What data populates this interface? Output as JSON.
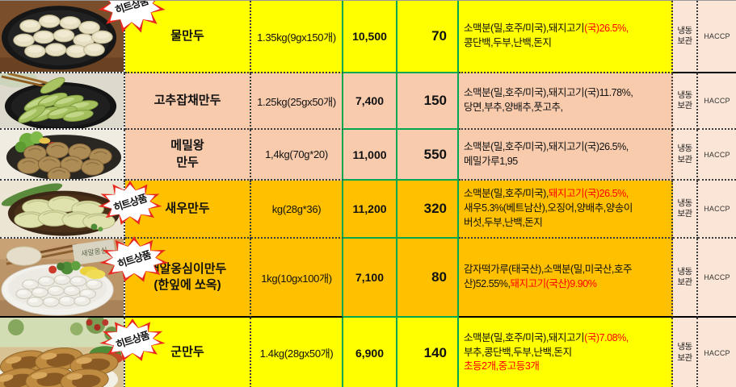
{
  "colors": {
    "yellow": "#FFFF00",
    "orange": "#FFC000",
    "peach": "#F8CBAD",
    "light_peach": "#FBE5D6",
    "green_border": "#00A651",
    "red_text": "#FF0000"
  },
  "badge": {
    "label": "히트상품"
  },
  "common": {
    "storage_line1": "냉동",
    "storage_line2": "보관",
    "cert": "HACCP"
  },
  "table": {
    "rows": [
      {
        "photo": "water-dumplings-photo",
        "name": "물만두",
        "name2": "",
        "spec": "1.35kg(9gx150개)",
        "price": "10,500",
        "qty": "70",
        "bg": "yellow",
        "hit_badge": true,
        "ingredients": [
          [
            {
              "t": "소맥분(밀,호주/미국),돼지고기",
              "red": false
            },
            {
              "t": "(국)26.5%,",
              "red": true
            }
          ],
          [
            {
              "t": "콩단백,두부,난백,돈지",
              "red": false
            }
          ]
        ]
      },
      {
        "photo": "pepper-japchae-dumplings-photo",
        "name": "고추잡채만두",
        "name2": "",
        "spec": "1.25kg(25gx50개)",
        "price": "7,400",
        "qty": "150",
        "bg": "peach",
        "hit_badge": false,
        "ingredients": [
          [
            {
              "t": "소맥분(밀,호주/미국),돼지고기(국)11.78%,",
              "red": false
            }
          ],
          [
            {
              "t": "당면,부추,양배추,풋고추,",
              "red": false
            }
          ]
        ]
      },
      {
        "photo": "buckwheat-king-dumplings-photo",
        "name": "메밀왕",
        "name2": "만두",
        "spec": "1,4kg(70g*20)",
        "price": "11,000",
        "qty": "550",
        "bg": "peach",
        "hit_badge": false,
        "ingredients": [
          [
            {
              "t": "소맥분(밀,호주/미국),돼지고기(국)26.5%,",
              "red": false
            }
          ],
          [
            {
              "t": "메밀가루1,95",
              "red": false
            }
          ]
        ]
      },
      {
        "photo": "shrimp-dumplings-photo",
        "name": "새우만두",
        "name2": "",
        "spec": "kg(28g*36)",
        "price": "11,200",
        "qty": "320",
        "bg": "orange",
        "hit_badge": true,
        "ingredients": [
          [
            {
              "t": "소맥분(밀,호주/미국),",
              "red": false
            },
            {
              "t": "돼지고기(국)26.5%,",
              "red": true
            }
          ],
          [
            {
              "t": "새우5.3%(베트남산),오징어,양배추,양송이",
              "red": false
            }
          ],
          [
            {
              "t": "버섯,두부,난백,돈지",
              "red": false
            }
          ]
        ]
      },
      {
        "photo": "saeal-ongsimi-dumplings-photo",
        "name": "새알옹심이만두",
        "name2": "(한잎에 쏘옥)",
        "spec": "1kg(10gx100개)",
        "price": "7,100",
        "qty": "80",
        "bg": "orange",
        "hit_badge": true,
        "ingredients": [
          [
            {
              "t": "감자떡가루(태국산),소맥분(밀,미국산,호주",
              "red": false
            }
          ],
          [
            {
              "t": "산)52.55%,",
              "red": false
            },
            {
              "t": "돼지고기(국산)9.90%",
              "red": true
            }
          ]
        ]
      },
      {
        "photo": "fried-dumplings-photo",
        "name": "군만두",
        "name2": "",
        "spec": "1.4kg(28gx50개)",
        "price": "6,900",
        "qty": "140",
        "bg": "yellow",
        "hit_badge": true,
        "ingredients": [
          [
            {
              "t": "소맥분(밀,호주/미국),돼지고기",
              "red": false
            },
            {
              "t": "(국)7.08%,",
              "red": true
            }
          ],
          [
            {
              "t": "부추,콩단백,두부,난백,돈지",
              "red": false
            }
          ],
          [
            {
              "t": "초등2개,중고등3개",
              "red": true
            }
          ]
        ]
      }
    ]
  }
}
